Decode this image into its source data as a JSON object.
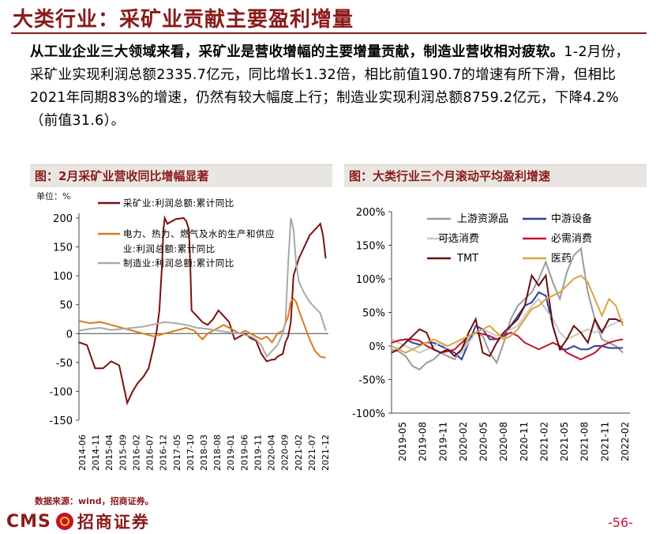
{
  "page": {
    "title": "大类行业：采矿业贡献主要盈利增量",
    "paragraph": {
      "lead": "从工业企业三大领域来看，采矿业是营收增幅的主要增量贡献，制造业营收相对疲软。",
      "body": "1-2月份，采矿业实现利润总额2335.7亿元，同比增长1.32倍，相比前值190.7的增速有所下滑，但相比2021年同期83%的增速，仍然有较大幅度上行；制造业实现利润总额8759.2亿元，下降4.2%（前值31.6）。"
    },
    "source": "数据来源：wind，招商证券。",
    "logo": {
      "latin": "CMS",
      "chinese": "招商证券"
    },
    "page_number": "-56-",
    "colors": {
      "brand": "#8B1A1A",
      "panel_bg": "#E9E6E2",
      "accent_red": "#C8102E"
    }
  },
  "chart_data": [
    {
      "type": "line",
      "title": "图：2月采矿业营收同比增幅显著",
      "ylabel": "单位：%",
      "ylim": [
        -150,
        200
      ],
      "yticks": [
        200,
        150,
        100,
        50,
        0,
        -50,
        -100,
        -150
      ],
      "xlim": [
        0,
        93
      ],
      "xticks": [
        "2014-06",
        "2014-11",
        "2015-04",
        "2015-09",
        "2016-02",
        "2016-07",
        "2016-12",
        "2017-05",
        "2017-10",
        "2018-03",
        "2018-08",
        "2019-01",
        "2019-06",
        "2019-11",
        "2020-04",
        "2020-09",
        "2021-02",
        "2021-07",
        "2021-12"
      ],
      "series": [
        {
          "name": "采矿业:利润总额:累计同比",
          "legend_lines": [
            "采矿业:利润总额:累计同比"
          ],
          "color": "#7B0F0F",
          "x": [
            0,
            3,
            6,
            9,
            12,
            15,
            18,
            19,
            20,
            22,
            24,
            26,
            27,
            28,
            29,
            30,
            31,
            31.5,
            32,
            33,
            36,
            39,
            40,
            41,
            41.5,
            42,
            44,
            46,
            48,
            50,
            52,
            54,
            56,
            57,
            58,
            60,
            62,
            64,
            66,
            68,
            70,
            72,
            73,
            74,
            76,
            77,
            78,
            79,
            80,
            82,
            84,
            85,
            86,
            88,
            89,
            90,
            91,
            92
          ],
          "y": [
            -15,
            -20,
            -60,
            -60,
            -48,
            -55,
            -120,
            -110,
            -100,
            -85,
            -75,
            -60,
            -40,
            -20,
            5,
            40,
            120,
            180,
            200,
            190,
            198,
            200,
            195,
            180,
            120,
            40,
            30,
            20,
            15,
            25,
            40,
            30,
            20,
            5,
            -10,
            -5,
            0,
            -8,
            -12,
            -35,
            -48,
            -45,
            -45,
            -40,
            -35,
            -15,
            -5,
            20,
            100,
            130,
            150,
            160,
            170,
            180,
            185,
            190,
            170,
            130
          ]
        },
        {
          "name": "电力、热力、燃气及水的生产和供应业:利润总额:累计同比",
          "legend_lines": [
            "电力、热力、燃气及水的生产和供应",
            "业:利润总额:累计同比"
          ],
          "color": "#D97A1A",
          "x": [
            0,
            4,
            8,
            12,
            16,
            20,
            24,
            28,
            32,
            36,
            40,
            43,
            46,
            48,
            50,
            52,
            54,
            56,
            58,
            60,
            62,
            64,
            66,
            68,
            70,
            72,
            74,
            76,
            78,
            79,
            80,
            81,
            82,
            84,
            86,
            88,
            90,
            92
          ],
          "y": [
            22,
            18,
            20,
            15,
            10,
            5,
            0,
            -5,
            0,
            5,
            10,
            5,
            -10,
            0,
            5,
            10,
            15,
            10,
            5,
            0,
            5,
            0,
            -5,
            -10,
            -5,
            -15,
            0,
            5,
            30,
            55,
            60,
            55,
            40,
            15,
            -10,
            -30,
            -40,
            -42
          ]
        },
        {
          "name": "制造业:利润总额:累计同比",
          "legend_lines": [
            "制造业:利润总额:累计同比"
          ],
          "color": "#A9A9A9",
          "x": [
            0,
            4,
            8,
            12,
            16,
            20,
            24,
            28,
            32,
            36,
            40,
            44,
            48,
            52,
            56,
            60,
            64,
            66,
            68,
            70,
            72,
            74,
            76,
            77,
            78,
            79,
            80,
            81,
            82,
            84,
            86,
            88,
            90,
            92
          ],
          "y": [
            5,
            8,
            10,
            6,
            8,
            10,
            12,
            16,
            20,
            18,
            15,
            10,
            8,
            5,
            2,
            0,
            -5,
            -10,
            -20,
            -40,
            -30,
            -20,
            0,
            20,
            120,
            200,
            180,
            120,
            90,
            70,
            55,
            45,
            35,
            5
          ]
        }
      ]
    },
    {
      "type": "line",
      "title": "图：大类行业三个月滚动平均盈利增速",
      "ylim": [
        -100,
        200
      ],
      "yticks": [
        "200%",
        "150%",
        "100%",
        "50%",
        "0%",
        "-50%",
        "-100%"
      ],
      "ytick_values": [
        200,
        150,
        100,
        50,
        0,
        -50,
        -100
      ],
      "xlim": [
        0,
        34
      ],
      "xticks": [
        "2019-05",
        "2019-08",
        "2019-11",
        "2020-02",
        "2020-05",
        "2020-08",
        "2020-11",
        "2021-02",
        "2021-05",
        "2021-08",
        "2021-11",
        "2022-02"
      ],
      "series": [
        {
          "name": "上游资源品",
          "color": "#9A9A9A",
          "x": [
            0,
            1,
            2,
            3,
            4,
            5,
            6,
            7,
            8,
            9,
            10,
            11,
            12,
            13,
            14,
            15,
            16,
            17,
            18,
            19,
            20,
            21,
            22,
            23,
            24,
            25,
            26,
            27,
            28,
            29,
            30,
            31,
            32,
            33
          ],
          "y": [
            -5,
            -8,
            -15,
            -30,
            -35,
            -25,
            -20,
            -10,
            -15,
            -20,
            -5,
            10,
            20,
            15,
            -10,
            -25,
            5,
            40,
            60,
            70,
            80,
            100,
            125,
            95,
            70,
            110,
            135,
            145,
            80,
            40,
            10,
            5,
            0,
            -10
          ]
        },
        {
          "name": "中游设备",
          "color": "#2A3FA0",
          "x": [
            0,
            1,
            2,
            3,
            4,
            5,
            6,
            7,
            8,
            9,
            10,
            11,
            12,
            13,
            14,
            15,
            16,
            17,
            18,
            19,
            20,
            21,
            22,
            23,
            24,
            25,
            26,
            27,
            28,
            29,
            30,
            31,
            32,
            33
          ],
          "y": [
            5,
            8,
            10,
            5,
            2,
            5,
            5,
            0,
            -5,
            -10,
            -20,
            5,
            30,
            25,
            10,
            10,
            15,
            30,
            45,
            60,
            65,
            80,
            75,
            30,
            -5,
            -5,
            0,
            -5,
            -5,
            0,
            0,
            -3,
            -3,
            -3
          ]
        },
        {
          "name": "可选消费",
          "color": "#C8C8C8",
          "x": [
            0,
            1,
            2,
            3,
            4,
            5,
            6,
            7,
            8,
            9,
            10,
            11,
            12,
            13,
            14,
            15,
            16,
            17,
            18,
            19,
            20,
            21,
            22,
            23,
            24,
            25,
            26,
            27,
            28,
            29,
            30,
            31,
            32,
            33
          ],
          "y": [
            10,
            5,
            0,
            -5,
            -10,
            -5,
            0,
            5,
            -5,
            -15,
            -10,
            5,
            20,
            25,
            20,
            15,
            20,
            25,
            30,
            45,
            60,
            70,
            55,
            40,
            20,
            10,
            15,
            20,
            25,
            20,
            25,
            30,
            35,
            40
          ]
        },
        {
          "name": "必需消费",
          "color": "#C8102E",
          "x": [
            0,
            1,
            2,
            3,
            4,
            5,
            6,
            7,
            8,
            9,
            10,
            11,
            12,
            13,
            14,
            15,
            16,
            17,
            18,
            19,
            20,
            21,
            22,
            23,
            24,
            25,
            26,
            27,
            28,
            29,
            30,
            31,
            32,
            33
          ],
          "y": [
            5,
            8,
            10,
            10,
            8,
            0,
            -5,
            -10,
            -8,
            -5,
            5,
            15,
            20,
            18,
            15,
            10,
            15,
            20,
            15,
            5,
            0,
            -5,
            0,
            5,
            0,
            -10,
            -15,
            -20,
            -15,
            -10,
            0,
            5,
            8,
            10
          ]
        },
        {
          "name": "TMT",
          "color": "#6B0F0F",
          "x": [
            0,
            1,
            2,
            3,
            4,
            5,
            6,
            7,
            8,
            9,
            10,
            11,
            12,
            13,
            14,
            15,
            16,
            17,
            18,
            19,
            20,
            21,
            22,
            23,
            24,
            25,
            26,
            27,
            28,
            29,
            30,
            31,
            32,
            33
          ],
          "y": [
            -10,
            -5,
            5,
            15,
            25,
            20,
            -5,
            -10,
            -5,
            -15,
            -5,
            20,
            40,
            -10,
            -15,
            5,
            20,
            30,
            40,
            60,
            105,
            90,
            105,
            30,
            -5,
            10,
            30,
            20,
            5,
            40,
            20,
            40,
            40,
            35
          ]
        },
        {
          "name": "医药",
          "color": "#D9A441",
          "x": [
            0,
            1,
            2,
            3,
            4,
            5,
            6,
            7,
            8,
            9,
            10,
            11,
            12,
            13,
            14,
            15,
            16,
            17,
            18,
            19,
            20,
            21,
            22,
            23,
            24,
            25,
            26,
            27,
            28,
            29,
            30,
            31,
            32,
            33
          ],
          "y": [
            0,
            -5,
            -10,
            -5,
            0,
            5,
            10,
            5,
            0,
            5,
            10,
            15,
            20,
            25,
            30,
            20,
            10,
            15,
            25,
            40,
            55,
            60,
            70,
            75,
            80,
            90,
            100,
            105,
            95,
            70,
            45,
            70,
            60,
            30
          ]
        }
      ]
    }
  ]
}
